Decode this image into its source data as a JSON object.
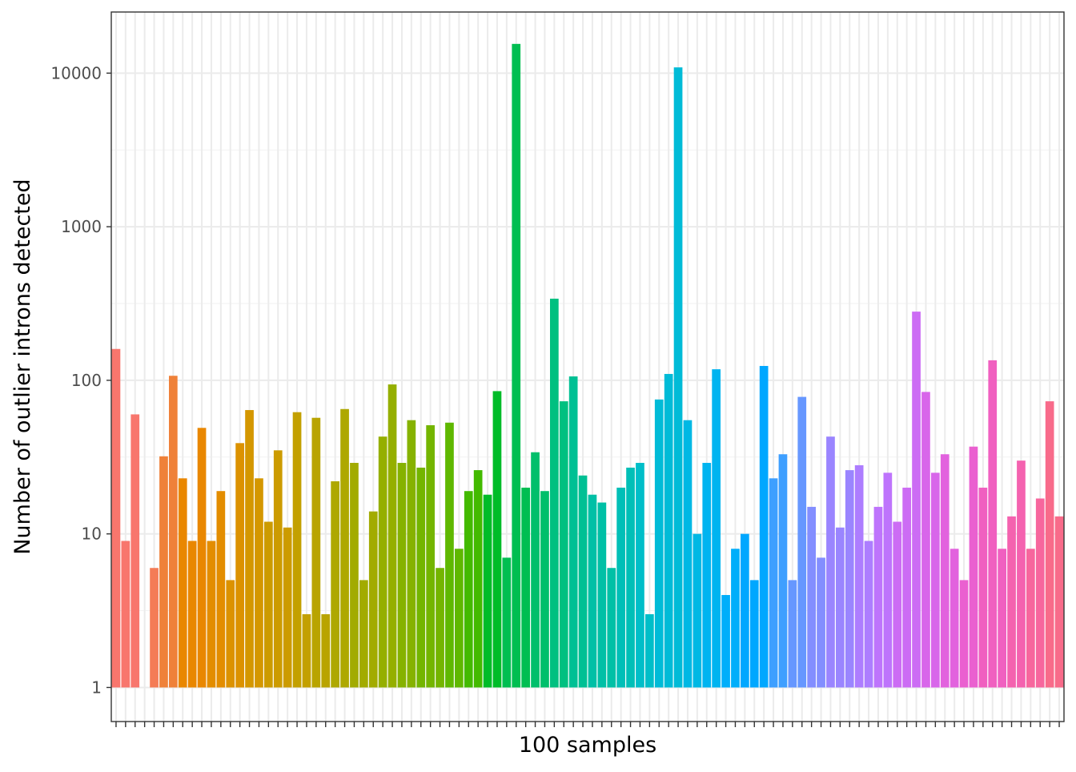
{
  "chart_data": {
    "type": "bar",
    "xlabel": "100 samples",
    "ylabel": "Number of outlier introns detected",
    "y_scale": "log10",
    "ylim": [
      0.6,
      25000
    ],
    "bar_baseline": 1,
    "grid": true,
    "theme": "bw",
    "legend": "none",
    "y_ticks": [
      {
        "value": 1,
        "label": "1"
      },
      {
        "value": 10,
        "label": "10"
      },
      {
        "value": 100,
        "label": "100"
      },
      {
        "value": 1000,
        "label": "1000"
      },
      {
        "value": 10000,
        "label": "10000"
      }
    ],
    "x_tick_labels_shown": false,
    "n_categories": 100,
    "values": [
      160,
      9,
      60,
      1,
      6,
      32,
      107,
      23,
      9,
      49,
      9,
      19,
      5,
      39,
      64,
      23,
      12,
      35,
      11,
      62,
      3,
      57,
      3,
      22,
      65,
      29,
      5,
      14,
      43,
      94,
      29,
      55,
      27,
      51,
      6,
      53,
      8,
      19,
      26,
      18,
      85,
      7,
      15500,
      20,
      34,
      19,
      340,
      73,
      106,
      24,
      18,
      16,
      6,
      20,
      27,
      29,
      3,
      75,
      110,
      10900,
      55,
      10,
      29,
      118,
      4,
      8,
      10,
      5,
      124,
      23,
      33,
      5,
      78,
      15,
      7,
      43,
      11,
      26,
      28,
      9,
      15,
      25,
      12,
      20,
      280,
      84,
      25,
      33,
      8,
      5,
      37,
      20,
      135,
      8,
      13,
      30,
      8,
      17,
      73,
      13
    ],
    "colors": [
      "#F8766D",
      "#F47C56",
      "#EF8139",
      "#E98700",
      "#E38D00",
      "#DC9200",
      "#D49700",
      "#CC9B00",
      "#C3A000",
      "#B9A400",
      "#AEA800",
      "#A2AB00",
      "#95AF00",
      "#86B200",
      "#74B500",
      "#5FB800",
      "#43BA00",
      "#00BC28",
      "#00BE51",
      "#00BF6B",
      "#00C080",
      "#00C094",
      "#00C0A6",
      "#00BFB7",
      "#00BEC8",
      "#00BBD7",
      "#00B8E4",
      "#00B4F0",
      "#00AEFA",
      "#00A7FF",
      "#3E9FFF",
      "#6697FF",
      "#838EFF",
      "#9A85FF",
      "#AD7DFF",
      "#BE74FC",
      "#CC6CF4",
      "#D866EA",
      "#E262DE",
      "#EA60D0",
      "#F060C0",
      "#F462AF",
      "#F7669D",
      "#F86B8A"
    ]
  }
}
